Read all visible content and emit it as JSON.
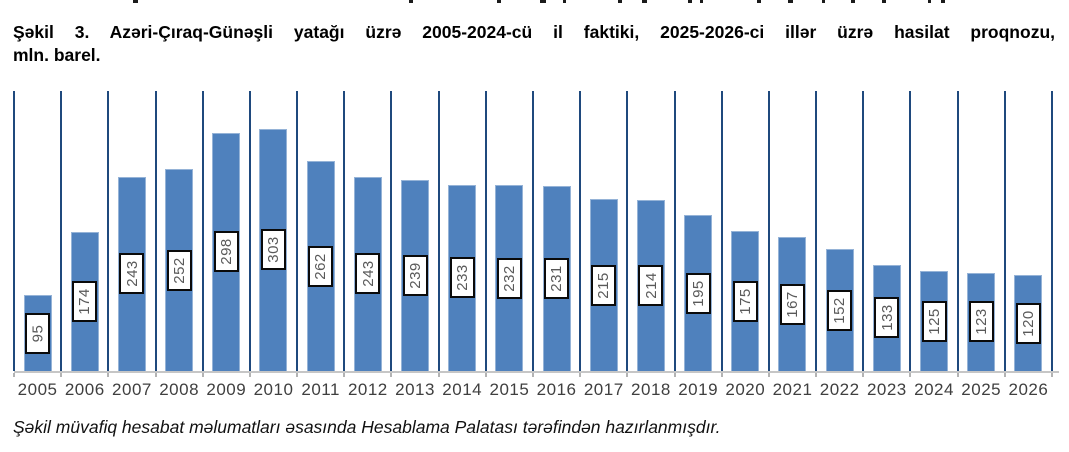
{
  "title": {
    "line1": "Şəkil 3. Azəri-Çıraq-Günəşli yatağı üzrə 2005-2024-cü il faktiki, 2025-2026-ci illər üzrə hasilat proqnozu,",
    "line2": "mln. barel."
  },
  "footer": {
    "text": "Şəkil müvafiq hesabat məlumatları əsasında Hesablama Palatası tərəfindən hazırlanmışdır."
  },
  "chart_data": {
    "type": "bar",
    "categories": [
      "2005",
      "2006",
      "2007",
      "2008",
      "2009",
      "2010",
      "2011",
      "2012",
      "2013",
      "2014",
      "2015",
      "2016",
      "2017",
      "2018",
      "2019",
      "2020",
      "2021",
      "2022",
      "2023",
      "2024",
      "2025",
      "2026"
    ],
    "values": [
      95,
      174,
      243,
      252,
      298,
      303,
      262,
      243,
      239,
      233,
      232,
      231,
      215,
      214,
      195,
      175,
      167,
      152,
      133,
      125,
      123,
      120
    ],
    "title": "",
    "xlabel": "",
    "ylabel": "",
    "ylim": [
      0,
      350
    ],
    "grid": "vertical-category-separators",
    "y_axis_labels_visible": false,
    "data_labels": "rotated-90-boxed-centered-on-bar",
    "legend": "none",
    "colors": {
      "bar_fill": "#4F81BD",
      "bar_border": "#95B3D7",
      "gridline": "#1F497D",
      "axis_line": "#C6C6C6",
      "tick": "#B3B3B3",
      "x_label_text": "#3F3F3F",
      "data_label_text": "#595959",
      "data_label_border": "#0A0A0A",
      "data_label_bg": "#FFFFFF"
    }
  }
}
